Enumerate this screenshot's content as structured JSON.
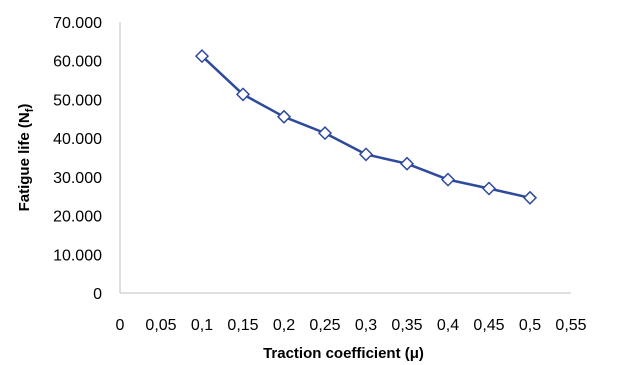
{
  "chart_data": {
    "type": "line",
    "title": "",
    "xlabel": "Traction coefficient (μ)",
    "ylabel_main": "Fatigue life (N",
    "ylabel_sub": "f",
    "ylabel_close": ")",
    "xlim": [
      0,
      0.55
    ],
    "ylim": [
      0,
      70000
    ],
    "x_ticks": [
      0,
      0.05,
      0.1,
      0.15,
      0.2,
      0.25,
      0.3,
      0.35,
      0.4,
      0.45,
      0.5,
      0.55
    ],
    "x_tick_labels": [
      "0",
      "0,05",
      "0,1",
      "0,15",
      "0,2",
      "0,25",
      "0,3",
      "0,35",
      "0,4",
      "0,45",
      "0,5",
      "0,55"
    ],
    "y_ticks": [
      0,
      10000,
      20000,
      30000,
      40000,
      50000,
      60000,
      70000
    ],
    "y_tick_labels": [
      "0",
      "10.000",
      "20.000",
      "30.000",
      "40.000",
      "50.000",
      "60.000",
      "70.000"
    ],
    "grid": false,
    "marker": "diamond",
    "series": [
      {
        "x": [
          0.1,
          0.15,
          0.2,
          0.25,
          0.3,
          0.35,
          0.4,
          0.45,
          0.5
        ],
        "y": [
          61200,
          51300,
          45500,
          41300,
          35800,
          33400,
          29300,
          27000,
          24600
        ],
        "color": "#2e4a9b"
      }
    ]
  }
}
